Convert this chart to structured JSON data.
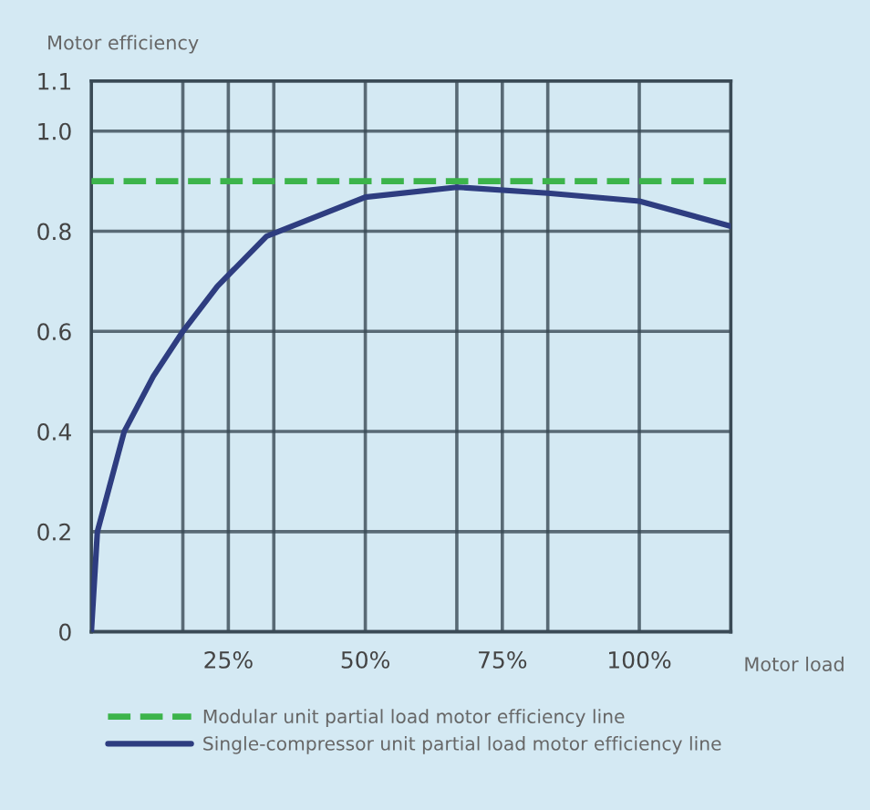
{
  "chart_data": {
    "type": "line",
    "xlabel": "Motor load",
    "ylabel": "Motor efficiency",
    "xlim": [
      0,
      116.7
    ],
    "ylim": [
      0,
      1.1
    ],
    "xticks": [
      {
        "value": 16.7,
        "label": null
      },
      {
        "value": 25,
        "label": "25%"
      },
      {
        "value": 33.3,
        "label": null
      },
      {
        "value": 50,
        "label": "50%"
      },
      {
        "value": 66.7,
        "label": null
      },
      {
        "value": 75,
        "label": "75%"
      },
      {
        "value": 83.3,
        "label": null
      },
      {
        "value": 100,
        "label": "100%"
      }
    ],
    "yticks": [
      0,
      0.2,
      0.4,
      0.6,
      0.8,
      {
        "value": 1.0,
        "label": "1.0"
      },
      1.1
    ],
    "grid": true,
    "legend": "bottom",
    "marker": "none",
    "series": [
      {
        "name": "Modular unit partial load motor efficiency line",
        "color": "#3cb44b",
        "line_style": "dashed",
        "x": [
          0,
          116.7
        ],
        "values": [
          0.9,
          0.9
        ]
      },
      {
        "name": "Single-compressor unit partial load motor efficiency line",
        "color": "#2e3d80",
        "line_style": "solid",
        "x": [
          0,
          1.1,
          6,
          11.3,
          16.7,
          23,
          32,
          50,
          66.7,
          83.3,
          100,
          116.7
        ],
        "values": [
          0,
          0.2,
          0.4,
          0.51,
          0.6,
          0.69,
          0.79,
          0.868,
          0.888,
          0.876,
          0.86,
          0.81
        ]
      }
    ]
  }
}
